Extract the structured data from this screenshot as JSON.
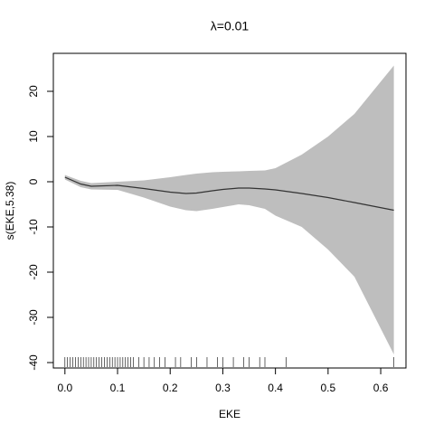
{
  "chart_data": {
    "type": "line",
    "title": "λ=0.01",
    "x_label": "EKE",
    "y_label": "s(EKE,5.38)",
    "x": [
      0,
      0.03,
      0.05,
      0.1,
      0.15,
      0.2,
      0.23,
      0.25,
      0.28,
      0.3,
      0.33,
      0.35,
      0.38,
      0.4,
      0.45,
      0.5,
      0.55,
      0.625
    ],
    "fit": [
      1.0,
      -0.5,
      -1.0,
      -0.8,
      -1.5,
      -2.3,
      -2.6,
      -2.5,
      -2.0,
      -1.7,
      -1.4,
      -1.4,
      -1.6,
      -1.8,
      -2.6,
      -3.5,
      -4.6,
      -6.3
    ],
    "upper": [
      1.5,
      0.2,
      -0.3,
      0.0,
      0.3,
      1.0,
      1.5,
      1.8,
      2.1,
      2.2,
      2.3,
      2.4,
      2.5,
      3.0,
      6.0,
      10.0,
      15.0,
      25.7
    ],
    "lower": [
      0.5,
      -1.2,
      -1.7,
      -1.8,
      -3.5,
      -5.5,
      -6.3,
      -6.5,
      -6.0,
      -5.6,
      -5.0,
      -5.2,
      -6.0,
      -7.5,
      -10.0,
      -15.0,
      -21.0,
      -38.2
    ],
    "band_color": "#bebebe",
    "line_color": "#333333",
    "rug": [
      0.0,
      0.005,
      0.01,
      0.015,
      0.02,
      0.025,
      0.03,
      0.035,
      0.04,
      0.045,
      0.05,
      0.055,
      0.06,
      0.065,
      0.07,
      0.075,
      0.08,
      0.085,
      0.09,
      0.095,
      0.1,
      0.105,
      0.11,
      0.115,
      0.12,
      0.125,
      0.13,
      0.14,
      0.15,
      0.16,
      0.17,
      0.18,
      0.19,
      0.21,
      0.22,
      0.24,
      0.25,
      0.27,
      0.29,
      0.3,
      0.32,
      0.34,
      0.35,
      0.37,
      0.38,
      0.42,
      0.625
    ],
    "xlim": [
      -0.022,
      0.648
    ],
    "ylim": [
      -41.2,
      28.4
    ],
    "xticks": [
      {
        "value": 0,
        "label": "0.0"
      },
      0.1,
      0.2,
      0.3,
      0.4,
      0.5,
      0.6
    ],
    "yticks": [
      -40,
      -30,
      -20,
      -10,
      0,
      10,
      20
    ]
  }
}
